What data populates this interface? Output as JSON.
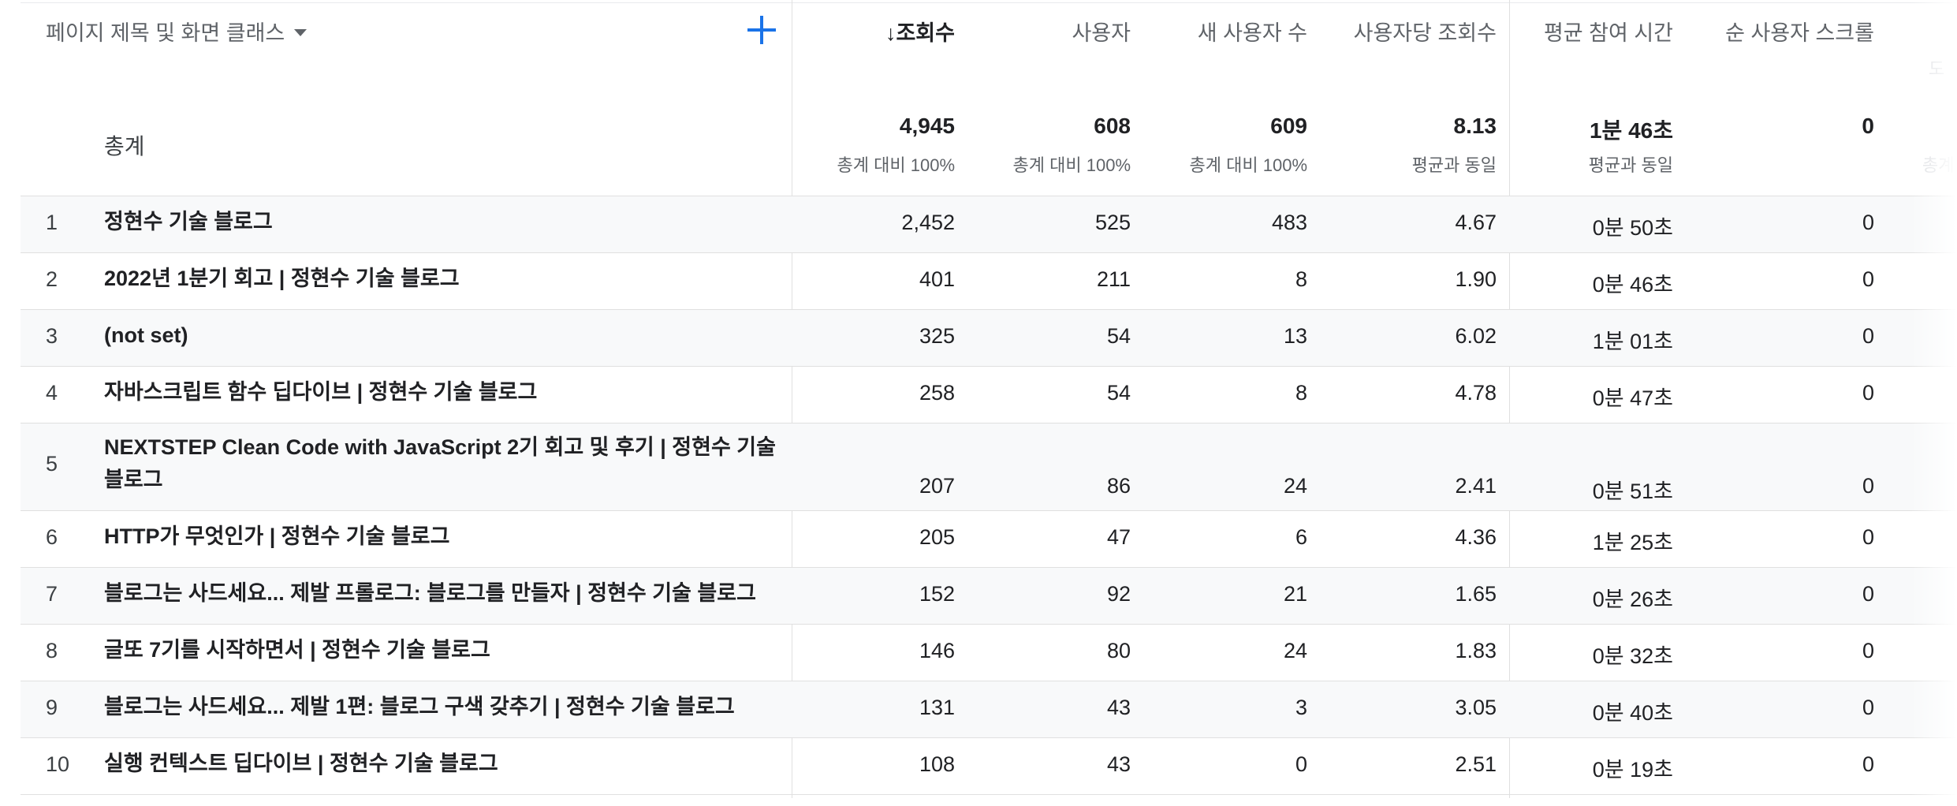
{
  "header": {
    "dimension_label": "페이지 제목 및 화면 클래스",
    "add_icon": "plus-icon",
    "sort_arrow": "↓",
    "metrics": [
      "조회수",
      "사용자",
      "새 사용자 수",
      "사용자당 조회수",
      "평균 참여 시간",
      "순 사용자 스크롤"
    ],
    "clipped_header": "도",
    "clipped_sub": "총계"
  },
  "totals": {
    "label": "총계",
    "values": [
      "4,945",
      "608",
      "609",
      "8.13",
      "1분 46초",
      "0"
    ],
    "subs": [
      "총계 대비 100%",
      "총계 대비 100%",
      "총계 대비 100%",
      "평균과 동일",
      "평균과 동일",
      ""
    ]
  },
  "rows": [
    {
      "rank": "1",
      "title": "정현수 기술 블로그",
      "values": [
        "2,452",
        "525",
        "483",
        "4.67",
        "0분 50초",
        "0"
      ]
    },
    {
      "rank": "2",
      "title": "2022년 1분기 회고 | 정현수 기술 블로그",
      "values": [
        "401",
        "211",
        "8",
        "1.90",
        "0분 46초",
        "0"
      ]
    },
    {
      "rank": "3",
      "title": "(not set)",
      "values": [
        "325",
        "54",
        "13",
        "6.02",
        "1분 01초",
        "0"
      ]
    },
    {
      "rank": "4",
      "title": "자바스크립트 함수 딥다이브 | 정현수 기술 블로그",
      "values": [
        "258",
        "54",
        "8",
        "4.78",
        "0분 47초",
        "0"
      ]
    },
    {
      "rank": "5",
      "title": "NEXTSTEP Clean Code with JavaScript 2기 회고 및 후기 | 정현수 기술 블로그",
      "values": [
        "207",
        "86",
        "24",
        "2.41",
        "0분 51초",
        "0"
      ]
    },
    {
      "rank": "6",
      "title": "HTTP가 무엇인가 | 정현수 기술 블로그",
      "values": [
        "205",
        "47",
        "6",
        "4.36",
        "1분 25초",
        "0"
      ]
    },
    {
      "rank": "7",
      "title": "블로그는 사드세요... 제발 프롤로그: 블로그를 만들자 | 정현수 기술 블로그",
      "values": [
        "152",
        "92",
        "21",
        "1.65",
        "0분 26초",
        "0"
      ]
    },
    {
      "rank": "8",
      "title": "글또 7기를 시작하면서 | 정현수 기술 블로그",
      "values": [
        "146",
        "80",
        "24",
        "1.83",
        "0분 32초",
        "0"
      ]
    },
    {
      "rank": "9",
      "title": "블로그는 사드세요... 제발 1편: 블로그 구색 갖추기 | 정현수 기술 블로그",
      "values": [
        "131",
        "43",
        "3",
        "3.05",
        "0분 40초",
        "0"
      ]
    },
    {
      "rank": "10",
      "title": "실행 컨텍스트 딥다이브 | 정현수 기술 블로그",
      "values": [
        "108",
        "43",
        "0",
        "2.51",
        "0분 19초",
        "0"
      ]
    }
  ]
}
